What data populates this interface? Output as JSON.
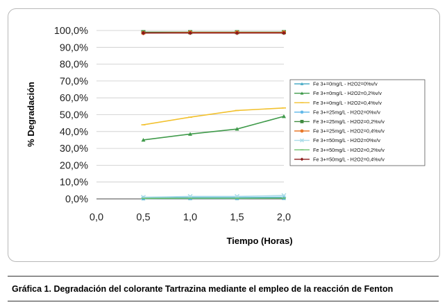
{
  "chart_data": {
    "type": "line",
    "xlabel": "Tiempo (Horas)",
    "ylabel": "% Degradación",
    "x": [
      0.5,
      1.0,
      1.5,
      2.0
    ],
    "xlim": [
      0,
      2
    ],
    "ylim": [
      0,
      100
    ],
    "x_tick_labels": [
      "0,0",
      "0,5",
      "1,0",
      "1,5",
      "2,0"
    ],
    "y_tick_labels": [
      "0,0%",
      "10,0%",
      "20,0%",
      "30,0%",
      "40,0%",
      "50,0%",
      "60,0%",
      "70,0%",
      "80,0%",
      "90,0%",
      "100,0%"
    ],
    "grid": "horizontal",
    "legend_position": "right",
    "series": [
      {
        "name": "Fe 3+=0mg/L - H2O2=0%v/v",
        "color": "#4bacc6",
        "marker": "triangle",
        "values": [
          0.2,
          0.3,
          0.3,
          0.4
        ]
      },
      {
        "name": "Fe 3+=0mg/L - H2O2=0,2%v/v",
        "color": "#3f9a4a",
        "marker": "triangle",
        "values": [
          35.0,
          38.5,
          41.5,
          49.0
        ]
      },
      {
        "name": "Fe 3+=0mg/L - H2O2=0,4%v/v",
        "color": "#f2c12e",
        "marker": "dash",
        "values": [
          44.0,
          48.5,
          52.5,
          54.0
        ]
      },
      {
        "name": "Fe 3+=25mg/L - H2O2=0%v/v",
        "color": "#5bb6e8",
        "marker": "star",
        "values": [
          0.5,
          0.8,
          0.8,
          1.0
        ]
      },
      {
        "name": "Fe 3+=25mg/L - H2O2=0,2%v/v",
        "color": "#3f8a3f",
        "marker": "square",
        "values": [
          99.0,
          99.0,
          99.0,
          99.0
        ]
      },
      {
        "name": "Fe 3+=25mg/L - H2O2=0,4%v/v",
        "color": "#e8782a",
        "marker": "circle",
        "values": [
          98.5,
          98.8,
          98.8,
          98.8
        ]
      },
      {
        "name": "Fe 3+=50mg/L - H2O2=0%v/v",
        "color": "#a9dbe8",
        "marker": "x",
        "values": [
          1.0,
          1.5,
          1.5,
          2.0
        ]
      },
      {
        "name": "Fe 3+=50mg/L - H2O2=0,2%v/v",
        "color": "#6cc06c",
        "marker": "dash",
        "values": [
          0.3,
          0.4,
          0.4,
          0.5
        ]
      },
      {
        "name": "Fe 3+=50mg/L - H2O2=0,4%v/v",
        "color": "#8b1a1a",
        "marker": "diamond",
        "values": [
          98.5,
          98.5,
          98.5,
          98.5
        ]
      }
    ]
  },
  "caption": "Gráfica 1. Degradación del colorante Tartrazina mediante el empleo de la reacción de Fenton"
}
